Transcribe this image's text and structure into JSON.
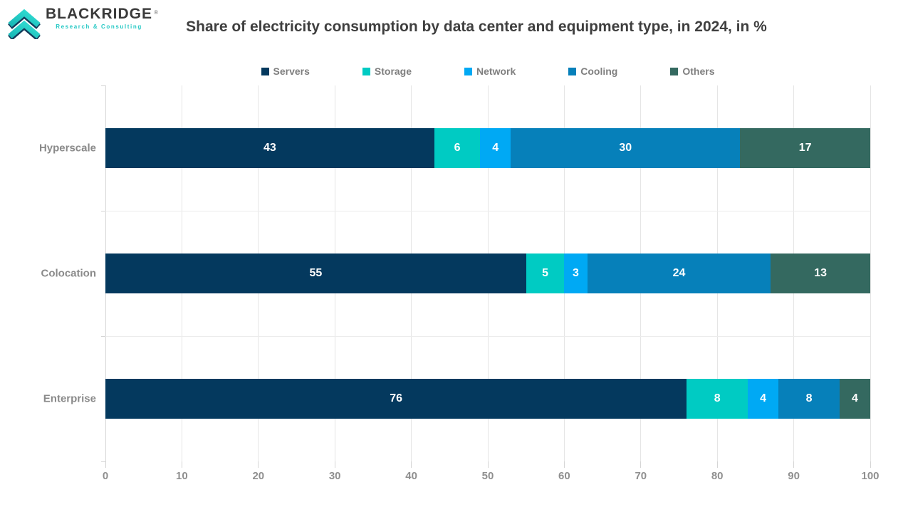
{
  "logo": {
    "name": "BLACKRIDGE",
    "registered": "®",
    "tagline": "Research & Consulting"
  },
  "title": "Share of electricity consumption by data center and equipment type, in 2024, in %",
  "chart_data": {
    "type": "bar",
    "orientation": "horizontal",
    "stacked": true,
    "title": "Share of electricity consumption by data center and equipment type, in 2024, in %",
    "categories": [
      "Hyperscale",
      "Colocation",
      "Enterprise"
    ],
    "series": [
      {
        "name": "Servers",
        "color": "#04395E",
        "values": [
          43,
          55,
          76
        ]
      },
      {
        "name": "Storage",
        "color": "#00CBC3",
        "values": [
          6,
          5,
          8
        ]
      },
      {
        "name": "Network",
        "color": "#00A9F4",
        "values": [
          4,
          3,
          4
        ]
      },
      {
        "name": "Cooling",
        "color": "#0680BA",
        "values": [
          30,
          24,
          8
        ]
      },
      {
        "name": "Others",
        "color": "#346960",
        "values": [
          17,
          13,
          4
        ]
      }
    ],
    "xlim": [
      0,
      100
    ],
    "xticks": [
      0,
      10,
      20,
      30,
      40,
      50,
      60,
      70,
      80,
      90,
      100
    ],
    "grid": true,
    "legend_position": "top",
    "value_label_color": "#FFFFFF"
  }
}
